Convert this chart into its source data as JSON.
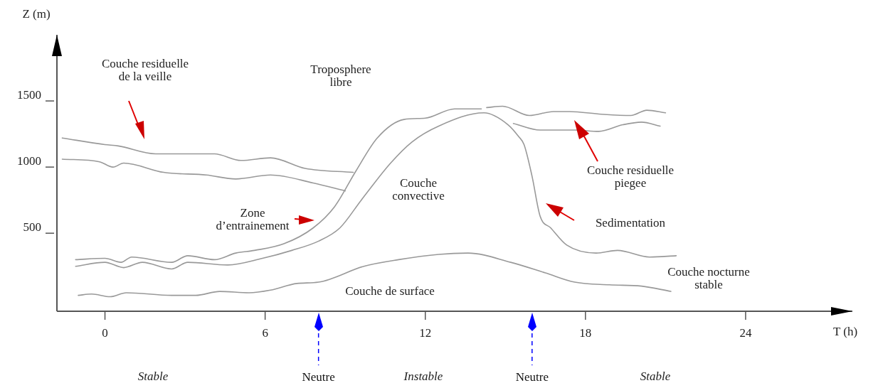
{
  "chart_data": {
    "type": "line",
    "xlabel": "T (h)",
    "ylabel": "Z (m)",
    "xlim": [
      -1.8,
      28
    ],
    "ylim": [
      -90,
      2000
    ],
    "xticks": [
      0,
      6,
      12,
      18,
      24
    ],
    "yticks": [
      500,
      1000,
      1500
    ],
    "legend": false,
    "marker": "none",
    "line_style": "solid",
    "series": [
      {
        "color": "#999999",
        "x": [
          -1.6,
          0.0,
          0.5,
          1.9,
          4.1,
          5.1,
          6.2,
          7.5,
          9.3
        ],
        "values": [
          1220,
          1170,
          1160,
          1100,
          1100,
          1050,
          1070,
          990,
          960
        ]
      },
      {
        "color": "#999999",
        "x": [
          -1.6,
          -0.2,
          0.3,
          0.7,
          2.2,
          3.8,
          4.9,
          6.2,
          7.8,
          9.0
        ],
        "values": [
          1060,
          1040,
          1000,
          1030,
          960,
          940,
          910,
          940,
          880,
          820
        ]
      },
      {
        "color": "#999999",
        "x": [
          -1.1,
          0.0,
          0.6,
          1.0,
          2.5,
          3.1,
          4.1,
          4.9,
          5.6,
          6.7,
          7.8,
          8.6,
          9.4,
          10.2,
          11.2,
          12.0,
          13.1,
          14.1
        ],
        "values": [
          300,
          310,
          280,
          320,
          280,
          330,
          300,
          350,
          370,
          420,
          540,
          700,
          970,
          1220,
          1360,
          1370,
          1440,
          1440
        ]
      },
      {
        "color": "#999999",
        "x": [
          14.3,
          14.9,
          15.9,
          16.8,
          17.4,
          18.6,
          19.7,
          20.3,
          21.0
        ],
        "values": [
          1450,
          1460,
          1390,
          1420,
          1420,
          1400,
          1390,
          1430,
          1410
        ]
      },
      {
        "color": "#999999",
        "x": [
          -1.1,
          0.0,
          0.7,
          1.4,
          2.5,
          3.1,
          4.6,
          5.9,
          7.0,
          8.0,
          8.8,
          9.6,
          10.7,
          11.5,
          12.5,
          14.2,
          15.1,
          15.5,
          15.7,
          16.0,
          16.3,
          16.7,
          17.3,
          18.4,
          19.2,
          20.4,
          21.4
        ],
        "values": [
          250,
          280,
          240,
          280,
          230,
          280,
          260,
          310,
          370,
          440,
          540,
          750,
          1030,
          1190,
          1310,
          1410,
          1320,
          1230,
          1170,
          930,
          630,
          540,
          410,
          350,
          370,
          320,
          330
        ]
      },
      {
        "color": "#999999",
        "x": [
          15.3,
          16.3,
          17.6,
          18.5,
          19.4,
          20.1,
          20.8
        ],
        "values": [
          1330,
          1280,
          1280,
          1270,
          1320,
          1340,
          1310
        ]
      },
      {
        "color": "#999999",
        "x": [
          -1.0,
          -0.5,
          0.2,
          0.8,
          2.5,
          3.4,
          4.3,
          5.4,
          6.2,
          7.2,
          8.0,
          9.7,
          11.0,
          12.5,
          13.6,
          15.2,
          16.5,
          17.6,
          18.9,
          20.1,
          21.2
        ],
        "values": [
          30,
          40,
          20,
          50,
          30,
          30,
          60,
          50,
          70,
          120,
          130,
          250,
          300,
          340,
          350,
          280,
          200,
          130,
          110,
          100,
          60
        ]
      }
    ],
    "ref_lines": [
      {
        "axis": "x",
        "value": 8,
        "label": "Neutre",
        "color": "#0000ff",
        "line_style": "dashed"
      },
      {
        "axis": "x",
        "value": 16,
        "label": "Neutre",
        "color": "#0000ff",
        "line_style": "dashed"
      }
    ],
    "annotations": [
      "Couche residuelle\nde la veille",
      "Troposphere\nlibre",
      "Couche\nconvective",
      "Zone\nd’entrainement",
      "Couche residuelle\npiegee",
      "Sedimentation",
      "Couche nocturne\nstable",
      "Couche de surface",
      "Stable",
      "Instable",
      "Stable"
    ]
  }
}
